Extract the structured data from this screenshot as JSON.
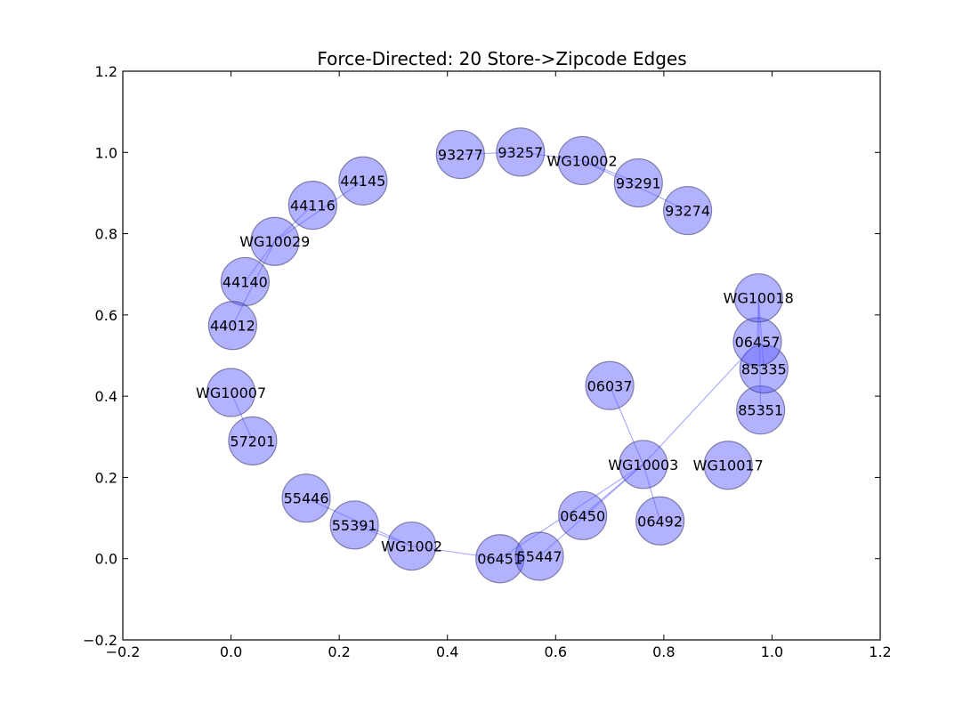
{
  "chart_data": {
    "type": "scatter",
    "title": "Force-Directed: 20 Store->Zipcode Edges",
    "xlabel": "",
    "ylabel": "",
    "xlim": [
      -0.2,
      1.2
    ],
    "ylim": [
      -0.2,
      1.2
    ],
    "xticks": [
      "−0.2",
      "0.0",
      "0.2",
      "0.4",
      "0.6",
      "0.8",
      "1.0",
      "1.2"
    ],
    "yticks": [
      "−0.2",
      "0.0",
      "0.2",
      "0.4",
      "0.6",
      "0.8",
      "1.0",
      "1.2"
    ],
    "grid": false,
    "node_color": "#6666ff",
    "edge_color": "#6666ff",
    "nodes": [
      {
        "id": "93277",
        "x": 0.424,
        "y": 0.995
      },
      {
        "id": "93257",
        "x": 0.535,
        "y": 1.001
      },
      {
        "id": "WG10002",
        "x": 0.649,
        "y": 0.98
      },
      {
        "id": "93291",
        "x": 0.753,
        "y": 0.925
      },
      {
        "id": "93274",
        "x": 0.844,
        "y": 0.857
      },
      {
        "id": "44145",
        "x": 0.244,
        "y": 0.93
      },
      {
        "id": "44116",
        "x": 0.151,
        "y": 0.87
      },
      {
        "id": "WG10029",
        "x": 0.081,
        "y": 0.781
      },
      {
        "id": "44140",
        "x": 0.026,
        "y": 0.682
      },
      {
        "id": "44012",
        "x": 0.003,
        "y": 0.574
      },
      {
        "id": "WG10007",
        "x": 0.0,
        "y": 0.409
      },
      {
        "id": "57201",
        "x": 0.04,
        "y": 0.29
      },
      {
        "id": "55446",
        "x": 0.139,
        "y": 0.149
      },
      {
        "id": "55391",
        "x": 0.228,
        "y": 0.083
      },
      {
        "id": "WG1002",
        "x": 0.334,
        "y": 0.031
      },
      {
        "id": "06451",
        "x": 0.497,
        "y": 0.0
      },
      {
        "id": "55447",
        "x": 0.57,
        "y": 0.006
      },
      {
        "id": "06450",
        "x": 0.65,
        "y": 0.106
      },
      {
        "id": "WG10003",
        "x": 0.762,
        "y": 0.232
      },
      {
        "id": "06492",
        "x": 0.793,
        "y": 0.093
      },
      {
        "id": "06037",
        "x": 0.7,
        "y": 0.426
      },
      {
        "id": "WG10017",
        "x": 0.919,
        "y": 0.23
      },
      {
        "id": "85351",
        "x": 0.979,
        "y": 0.366
      },
      {
        "id": "85335",
        "x": 0.985,
        "y": 0.467
      },
      {
        "id": "06457",
        "x": 0.973,
        "y": 0.534
      },
      {
        "id": "WG10018",
        "x": 0.975,
        "y": 0.642
      }
    ],
    "edges": [
      [
        "93257",
        "93277"
      ],
      [
        "93257",
        "WG10002"
      ],
      [
        "WG10002",
        "93291"
      ],
      [
        "WG10002",
        "93274"
      ],
      [
        "WG10029",
        "44145"
      ],
      [
        "WG10029",
        "44116"
      ],
      [
        "WG10029",
        "44140"
      ],
      [
        "WG10029",
        "44012"
      ],
      [
        "WG10007",
        "57201"
      ],
      [
        "WG1002",
        "55446"
      ],
      [
        "WG1002",
        "55391"
      ],
      [
        "WG1002",
        "06451"
      ],
      [
        "WG10003",
        "06451"
      ],
      [
        "WG10003",
        "55447"
      ],
      [
        "WG10003",
        "06450"
      ],
      [
        "WG10003",
        "06492"
      ],
      [
        "WG10003",
        "06037"
      ],
      [
        "WG10003",
        "06457"
      ],
      [
        "WG10018",
        "06457"
      ],
      [
        "WG10018",
        "85335"
      ],
      [
        "WG10018",
        "85351"
      ]
    ]
  }
}
